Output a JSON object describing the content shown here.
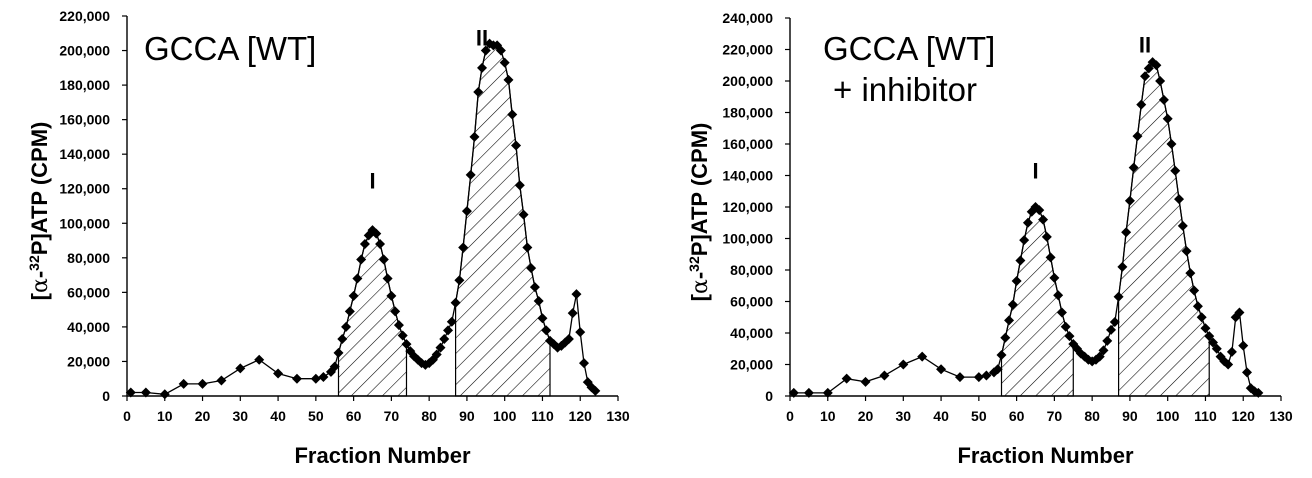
{
  "chart_data": [
    {
      "type": "line",
      "title": "GCCA [WT]",
      "subtitle": "",
      "xlabel": "Fraction Number",
      "ylabel": "[α-32P]ATP (CPM)",
      "ylabel_parts": {
        "pre": "[",
        "alpha": "α",
        "mid": "-",
        "sup": "32",
        "post": "P]ATP (CPM)"
      },
      "xlim": [
        0,
        130
      ],
      "ylim": [
        0,
        220000
      ],
      "x_ticks": [
        "0",
        "10",
        "20",
        "30",
        "40",
        "50",
        "60",
        "70",
        "80",
        "90",
        "100",
        "110",
        "120",
        "130"
      ],
      "y_ticks": [
        "0",
        "20,000",
        "40,000",
        "60,000",
        "80,000",
        "100,000",
        "120,000",
        "140,000",
        "160,000",
        "180,000",
        "200,000",
        "220,000"
      ],
      "peak_labels": [
        {
          "text": "I",
          "x": 65,
          "y": 120000
        },
        {
          "text": "II",
          "x": 94,
          "y": 203000
        }
      ],
      "shaded_regions": [
        [
          56,
          74
        ],
        [
          87,
          112
        ]
      ],
      "series": [
        {
          "x": [
            1,
            5,
            10,
            15,
            20,
            25,
            30,
            35,
            40,
            45,
            50,
            52,
            54,
            55,
            56,
            57,
            58,
            59,
            60,
            61,
            62,
            63,
            64,
            65,
            66,
            67,
            68,
            69,
            70,
            71,
            72,
            73,
            74,
            75,
            76,
            77,
            78,
            79,
            80,
            81,
            82,
            83,
            84,
            85,
            86,
            87,
            88,
            89,
            90,
            91,
            92,
            93,
            94,
            95,
            96,
            97,
            98,
            99,
            100,
            101,
            102,
            103,
            104,
            105,
            106,
            107,
            108,
            109,
            110,
            111,
            112,
            113,
            114,
            115,
            116,
            117,
            118,
            119,
            120,
            121,
            122,
            123,
            124
          ],
          "y": [
            2000,
            2000,
            1000,
            7000,
            7000,
            9000,
            16000,
            21000,
            13000,
            10000,
            10000,
            11000,
            14000,
            17000,
            25000,
            33000,
            40000,
            49000,
            58000,
            68000,
            79000,
            88000,
            93000,
            96000,
            94000,
            88000,
            79000,
            68000,
            58000,
            49000,
            41000,
            35000,
            30000,
            26000,
            23000,
            21000,
            19000,
            18000,
            19000,
            21000,
            24000,
            28000,
            33000,
            38000,
            43000,
            54000,
            67000,
            86000,
            107000,
            128000,
            150000,
            176000,
            190000,
            200000,
            204000,
            203000,
            203000,
            200000,
            193000,
            183000,
            163000,
            145000,
            122000,
            105000,
            86000,
            74000,
            63000,
            55000,
            45000,
            38000,
            32000,
            30000,
            28000,
            29000,
            31000,
            33000,
            48000,
            59000,
            37000,
            19000,
            8000,
            5000,
            3000
          ]
        }
      ]
    },
    {
      "type": "line",
      "title": "GCCA [WT]",
      "subtitle": "+ inhibitor",
      "xlabel": "Fraction Number",
      "ylabel": "[α-32P]ATP (CPM)",
      "ylabel_parts": {
        "pre": "[",
        "alpha": "α",
        "mid": "-",
        "sup": "32",
        "post": "P]ATP (CPM)"
      },
      "xlim": [
        0,
        130
      ],
      "ylim": [
        0,
        240000
      ],
      "x_ticks": [
        "0",
        "10",
        "20",
        "30",
        "40",
        "50",
        "60",
        "70",
        "80",
        "90",
        "100",
        "110",
        "120",
        "130"
      ],
      "y_ticks": [
        "0",
        "20,000",
        "40,000",
        "60,000",
        "80,000",
        "100,000",
        "120,000",
        "140,000",
        "160,000",
        "180,000",
        "200,000",
        "220,000",
        "240,000"
      ],
      "peak_labels": [
        {
          "text": "I",
          "x": 65,
          "y": 138000
        },
        {
          "text": "II",
          "x": 94,
          "y": 218000
        }
      ],
      "shaded_regions": [
        [
          56,
          75
        ],
        [
          87,
          111
        ]
      ],
      "series": [
        {
          "x": [
            1,
            5,
            10,
            15,
            20,
            25,
            30,
            35,
            40,
            45,
            50,
            52,
            54,
            55,
            56,
            57,
            58,
            59,
            60,
            61,
            62,
            63,
            64,
            65,
            66,
            67,
            68,
            69,
            70,
            71,
            72,
            73,
            74,
            75,
            76,
            77,
            78,
            79,
            80,
            81,
            82,
            83,
            84,
            85,
            86,
            87,
            88,
            89,
            90,
            91,
            92,
            93,
            94,
            95,
            96,
            97,
            98,
            99,
            100,
            101,
            102,
            103,
            104,
            105,
            106,
            107,
            108,
            109,
            110,
            111,
            112,
            113,
            114,
            115,
            116,
            117,
            118,
            119,
            120,
            121,
            122,
            123,
            124
          ],
          "y": [
            2000,
            2000,
            2000,
            11000,
            9000,
            13000,
            20000,
            25000,
            17000,
            12000,
            12000,
            13000,
            15000,
            17000,
            26000,
            37000,
            48000,
            58000,
            73000,
            86000,
            99000,
            110000,
            117000,
            120000,
            118000,
            112000,
            101000,
            88000,
            75000,
            64000,
            53000,
            44000,
            38000,
            33000,
            30000,
            27000,
            25000,
            23000,
            22000,
            23000,
            25000,
            29000,
            35000,
            42000,
            47000,
            63000,
            82000,
            104000,
            124000,
            145000,
            165000,
            185000,
            203000,
            208000,
            212000,
            210000,
            200000,
            188000,
            176000,
            160000,
            143000,
            125000,
            108000,
            92000,
            78000,
            67000,
            57000,
            50000,
            43000,
            38000,
            34000,
            30000,
            25000,
            22000,
            20000,
            28000,
            50000,
            53000,
            32000,
            15000,
            5000,
            3000,
            2000
          ]
        }
      ]
    }
  ]
}
